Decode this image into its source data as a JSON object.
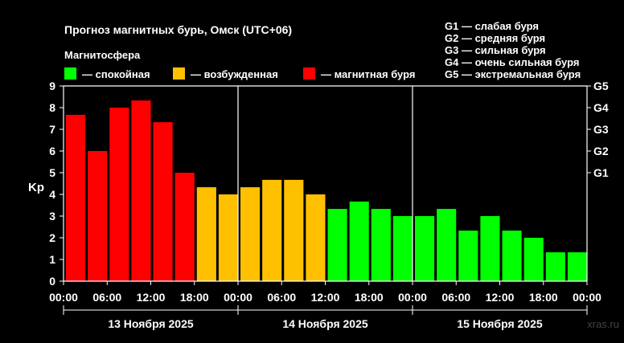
{
  "chart_data": {
    "type": "bar",
    "title": "Прогноз магнитных бурь, Омск (UTC+06)",
    "legend_title": "Магнитосфера",
    "legend": [
      {
        "label": "— спокойная",
        "color": "#00ff00"
      },
      {
        "label": "— возбужденная",
        "color": "#ffc000"
      },
      {
        "label": "— магнитная буря",
        "color": "#ff0000"
      }
    ],
    "g_scale": [
      {
        "label": "G1 — слабая буря"
      },
      {
        "label": "G2 — средняя буря"
      },
      {
        "label": "G3 — сильная буря"
      },
      {
        "label": "G4 — очень сильная буря"
      },
      {
        "label": "G5 — экстремальная буря"
      }
    ],
    "ylabel": "Kp",
    "ylim": [
      0,
      9
    ],
    "yticks": [
      "0",
      "1",
      "2",
      "3",
      "4",
      "5",
      "6",
      "7",
      "8",
      "9"
    ],
    "right_ticks": [
      {
        "value": 5,
        "label": "G1"
      },
      {
        "value": 6,
        "label": "G2"
      },
      {
        "value": 7,
        "label": "G3"
      },
      {
        "value": 8,
        "label": "G4"
      },
      {
        "value": 9,
        "label": "G5"
      }
    ],
    "xtick_labels": [
      "00:00",
      "06:00",
      "12:00",
      "18:00",
      "00:00",
      "06:00",
      "12:00",
      "18:00",
      "00:00",
      "06:00",
      "12:00",
      "18:00",
      "00:00"
    ],
    "days": [
      "13 Ноября 2025",
      "14 Ноября 2025",
      "15 Ноября 2025"
    ],
    "bars_per_day": 8,
    "values": [
      7.67,
      6.0,
      8.0,
      8.33,
      7.33,
      5.0,
      4.33,
      4.0,
      4.33,
      4.67,
      4.67,
      4.0,
      3.33,
      3.67,
      3.33,
      3.0,
      3.0,
      3.33,
      2.33,
      3.0,
      2.33,
      2.0,
      1.33,
      1.33
    ],
    "colors": {
      "quiet": "#00ff00",
      "active": "#ffc000",
      "storm": "#ff0000",
      "frame": "#ffffff"
    },
    "thresholds": {
      "active": 4,
      "storm": 5
    },
    "grid": false
  },
  "watermark": "xras.ru"
}
